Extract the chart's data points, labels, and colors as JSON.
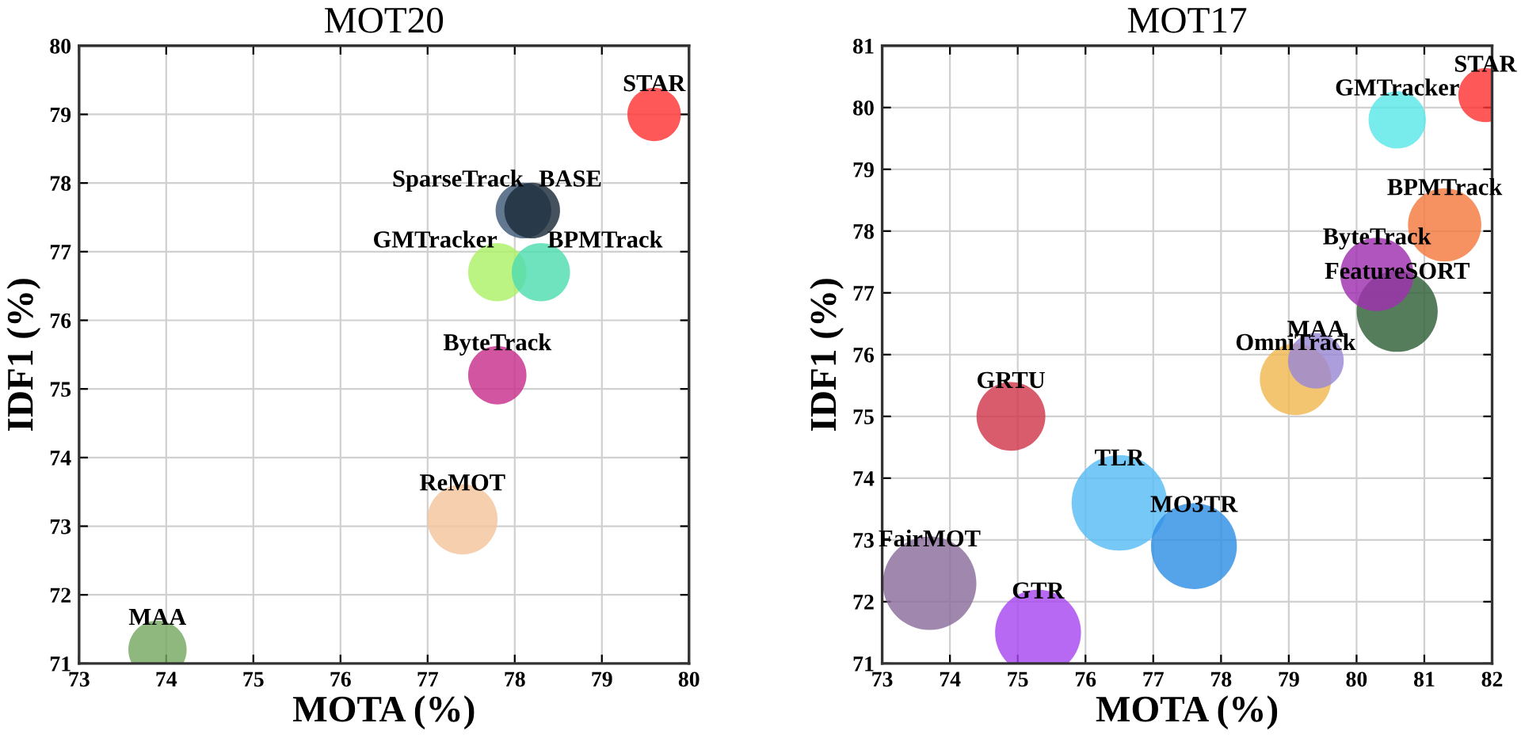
{
  "chart_data": [
    {
      "type": "bubble",
      "title": "MOT20",
      "xlabel": "MOTA (%)",
      "ylabel": "IDF1 (%)",
      "xlim": [
        73,
        80
      ],
      "ylim": [
        71,
        80
      ],
      "xticks": [
        73,
        74,
        75,
        76,
        77,
        78,
        79,
        80
      ],
      "yticks": [
        71,
        72,
        73,
        74,
        75,
        76,
        77,
        78,
        79,
        80
      ],
      "grid": true,
      "legend": false,
      "series": [
        {
          "name": "STAR",
          "color": "#ff3333",
          "x": [
            79.6
          ],
          "values": [
            79.0
          ],
          "sizes": [
            0.58
          ]
        },
        {
          "name": "SparseTrack",
          "color": "#3f5a78",
          "x": [
            78.1
          ],
          "values": [
            77.6
          ],
          "sizes": [
            0.63
          ]
        },
        {
          "name": "BASE",
          "color": "#1c2c3a",
          "x": [
            78.2
          ],
          "values": [
            77.6
          ],
          "sizes": [
            0.63
          ]
        },
        {
          "name": "GMTracker",
          "color": "#acf266",
          "x": [
            77.8
          ],
          "values": [
            76.7
          ],
          "sizes": [
            0.69
          ]
        },
        {
          "name": "BPMTrack",
          "color": "#4fdcb0",
          "x": [
            78.3
          ],
          "values": [
            76.7
          ],
          "sizes": [
            0.69
          ]
        },
        {
          "name": "ByteTrack",
          "color": "#c8308c",
          "x": [
            77.8
          ],
          "values": [
            75.2
          ],
          "sizes": [
            0.69
          ]
        },
        {
          "name": "ReMOT",
          "color": "#f4c49c",
          "x": [
            77.4
          ],
          "values": [
            73.1
          ],
          "sizes": [
            1
          ]
        },
        {
          "name": "MAA",
          "color": "#76a862",
          "x": [
            73.9
          ],
          "values": [
            71.2
          ],
          "sizes": [
            0.69
          ]
        }
      ]
    },
    {
      "type": "bubble",
      "title": "MOT17",
      "xlabel": "MOTA (%)",
      "ylabel": "IDF1 (%)",
      "xlim": [
        73,
        82
      ],
      "ylim": [
        71,
        81
      ],
      "xticks": [
        73,
        74,
        75,
        76,
        77,
        78,
        79,
        80,
        81,
        82
      ],
      "yticks": [
        71,
        72,
        73,
        74,
        75,
        76,
        77,
        78,
        79,
        80,
        81
      ],
      "grid": true,
      "legend": false,
      "series": [
        {
          "name": "STAR",
          "color": "#ff3333",
          "x": [
            81.9
          ],
          "values": [
            80.2
          ],
          "sizes": [
            0.32
          ]
        },
        {
          "name": "GMTracker",
          "color": "#5ae8e8",
          "x": [
            80.6
          ],
          "values": [
            79.8
          ],
          "sizes": [
            0.36
          ]
        },
        {
          "name": "BPMTrack",
          "color": "#f47a40",
          "x": [
            81.3
          ],
          "values": [
            78.1
          ],
          "sizes": [
            0.59
          ]
        },
        {
          "name": "ByteTrack",
          "color": "#a030b0",
          "x": [
            80.3
          ],
          "values": [
            77.3
          ],
          "sizes": [
            0.59
          ]
        },
        {
          "name": "FeatureSORT",
          "color": "#2f6038",
          "x": [
            80.6
          ],
          "values": [
            76.7
          ],
          "sizes": [
            0.72
          ]
        },
        {
          "name": "MAA",
          "color": "#9a88d4",
          "x": [
            79.4
          ],
          "values": [
            75.9
          ],
          "sizes": [
            0.34
          ]
        },
        {
          "name": "OmniTrack",
          "color": "#f2b850",
          "x": [
            79.1
          ],
          "values": [
            75.6
          ],
          "sizes": [
            0.56
          ]
        },
        {
          "name": "GRTU",
          "color": "#d0384c",
          "x": [
            74.9
          ],
          "values": [
            75.0
          ],
          "sizes": [
            0.52
          ]
        },
        {
          "name": "TLR",
          "color": "#58bcf4",
          "x": [
            76.5
          ],
          "values": [
            73.6
          ],
          "sizes": [
            1
          ]
        },
        {
          "name": "MO3TR",
          "color": "#3090e4",
          "x": [
            77.6
          ],
          "values": [
            72.9
          ],
          "sizes": [
            0.81
          ]
        },
        {
          "name": "FairMOT",
          "color": "#8a6c9c",
          "x": [
            73.7
          ],
          "values": [
            72.3
          ],
          "sizes": [
            0.96
          ]
        },
        {
          "name": "GTR",
          "color": "#a848f0",
          "x": [
            75.3
          ],
          "values": [
            71.5
          ],
          "sizes": [
            0.81
          ]
        }
      ]
    }
  ]
}
